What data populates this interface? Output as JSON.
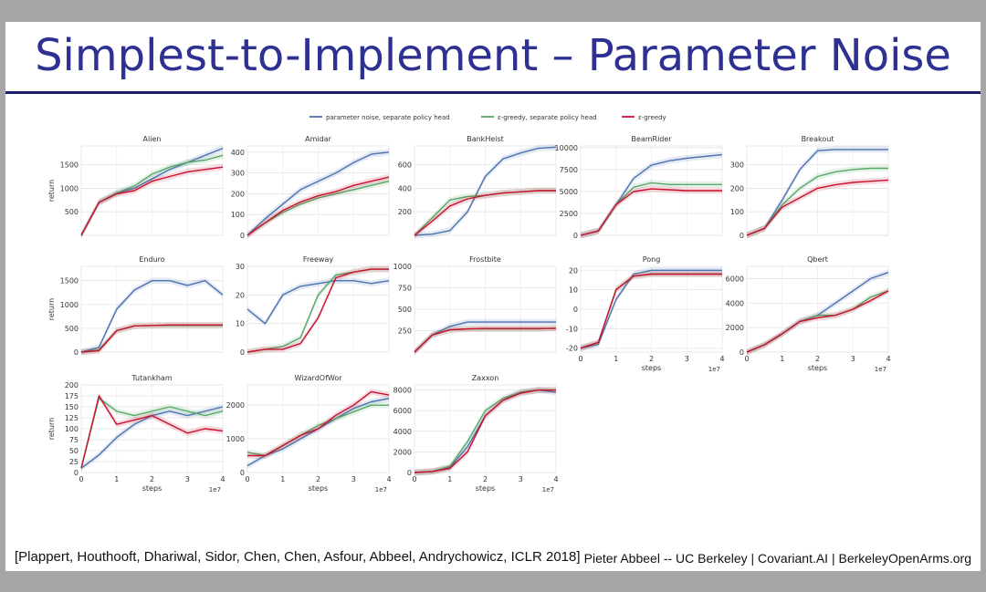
{
  "slide": {
    "title": "Simplest-to-Implement – Parameter Noise",
    "citation": "[Plappert, Houthooft,  Dhariwal, Sidor, Chen, Chen, Asfour, Abbeel, Andrychowicz, ICLR 2018]",
    "credit": "Pieter Abbeel -- UC Berkeley | Covariant.AI | BerkeleyOpenArms.org"
  },
  "colors": {
    "title": "#2e3192",
    "param_noise": "#4c72b0",
    "eps_greedy_sep": "#55a868",
    "eps_greedy": "#c8102e"
  },
  "legend": [
    "parameter noise, separate policy head",
    "ε-greedy, separate policy head",
    "ε-greedy"
  ],
  "chart_data": [
    {
      "type": "line",
      "title": "Alien",
      "ylabel": "return",
      "xlabel": "",
      "x": [
        0,
        0.5,
        1,
        1.5,
        2,
        2.5,
        3,
        3.5,
        4
      ],
      "ylim": [
        0,
        1900
      ],
      "yticks": [
        "500",
        "1000",
        "1500"
      ],
      "ytick_vals": [
        500,
        1000,
        1500
      ],
      "xticks": [],
      "series": [
        {
          "name": "parameter noise, separate policy head",
          "values": [
            0,
            700,
            900,
            1000,
            1200,
            1400,
            1550,
            1700,
            1850
          ]
        },
        {
          "name": "ε-greedy, separate policy head",
          "values": [
            0,
            700,
            900,
            1050,
            1300,
            1450,
            1550,
            1600,
            1700
          ]
        },
        {
          "name": "ε-greedy",
          "values": [
            0,
            700,
            880,
            950,
            1150,
            1250,
            1350,
            1400,
            1450
          ]
        }
      ]
    },
    {
      "type": "line",
      "title": "Amidar",
      "ylabel": "",
      "xlabel": "",
      "x": [
        0,
        0.5,
        1,
        1.5,
        2,
        2.5,
        3,
        3.5,
        4
      ],
      "ylim": [
        0,
        430
      ],
      "yticks": [
        "0",
        "100",
        "200",
        "300",
        "400"
      ],
      "ytick_vals": [
        0,
        100,
        200,
        300,
        400
      ],
      "xticks": [],
      "series": [
        {
          "name": "parameter noise, separate policy head",
          "values": [
            0,
            80,
            150,
            220,
            260,
            300,
            350,
            390,
            400
          ]
        },
        {
          "name": "ε-greedy, separate policy head",
          "values": [
            0,
            60,
            110,
            150,
            180,
            200,
            220,
            240,
            260
          ]
        },
        {
          "name": "ε-greedy",
          "values": [
            0,
            60,
            120,
            160,
            190,
            210,
            240,
            260,
            280
          ]
        }
      ]
    },
    {
      "type": "line",
      "title": "BankHeist",
      "ylabel": "",
      "xlabel": "",
      "x": [
        0,
        0.5,
        1,
        1.5,
        2,
        2.5,
        3,
        3.5,
        4
      ],
      "ylim": [
        0,
        760
      ],
      "yticks": [
        "200",
        "400",
        "600"
      ],
      "ytick_vals": [
        200,
        400,
        600
      ],
      "xticks": [],
      "series": [
        {
          "name": "parameter noise, separate policy head",
          "values": [
            0,
            10,
            40,
            200,
            500,
            650,
            700,
            740,
            750
          ]
        },
        {
          "name": "ε-greedy, separate policy head",
          "values": [
            0,
            150,
            300,
            330,
            340,
            360,
            370,
            380,
            380
          ]
        },
        {
          "name": "ε-greedy",
          "values": [
            0,
            120,
            250,
            310,
            340,
            360,
            370,
            380,
            380
          ]
        }
      ]
    },
    {
      "type": "line",
      "title": "BeamRider",
      "ylabel": "",
      "xlabel": "",
      "x": [
        0,
        0.5,
        1,
        1.5,
        2,
        2.5,
        3,
        3.5,
        4
      ],
      "ylim": [
        0,
        10200
      ],
      "yticks": [
        "0",
        "2500",
        "5000",
        "7500",
        "10000"
      ],
      "ytick_vals": [
        0,
        2500,
        5000,
        7500,
        10000
      ],
      "xticks": [],
      "series": [
        {
          "name": "parameter noise, separate policy head",
          "values": [
            0,
            500,
            3500,
            6500,
            8000,
            8500,
            8800,
            9000,
            9200
          ]
        },
        {
          "name": "ε-greedy, separate policy head",
          "values": [
            0,
            500,
            3500,
            5500,
            6000,
            5800,
            5800,
            5800,
            5800
          ]
        },
        {
          "name": "ε-greedy",
          "values": [
            0,
            500,
            3500,
            5000,
            5300,
            5200,
            5100,
            5100,
            5100
          ]
        }
      ]
    },
    {
      "type": "line",
      "title": "Breakout",
      "ylabel": "",
      "xlabel": "",
      "x": [
        0,
        0.5,
        1,
        1.5,
        2,
        2.5,
        3,
        3.5,
        4
      ],
      "ylim": [
        0,
        380
      ],
      "yticks": [
        "0",
        "100",
        "200",
        "300"
      ],
      "ytick_vals": [
        0,
        100,
        200,
        300
      ],
      "xticks": [],
      "series": [
        {
          "name": "parameter noise, separate policy head",
          "values": [
            0,
            30,
            150,
            280,
            360,
            365,
            365,
            365,
            365
          ]
        },
        {
          "name": "ε-greedy, separate policy head",
          "values": [
            0,
            30,
            130,
            200,
            250,
            270,
            280,
            285,
            285
          ]
        },
        {
          "name": "ε-greedy",
          "values": [
            0,
            30,
            120,
            160,
            200,
            215,
            225,
            230,
            235
          ]
        }
      ]
    },
    {
      "type": "line",
      "title": "Enduro",
      "ylabel": "return",
      "xlabel": "",
      "x": [
        0,
        0.5,
        1,
        1.5,
        2,
        2.5,
        3,
        3.5,
        4
      ],
      "ylim": [
        0,
        1800
      ],
      "yticks": [
        "0",
        "500",
        "1000",
        "1500"
      ],
      "ytick_vals": [
        0,
        500,
        1000,
        1500
      ],
      "xticks": [],
      "series": [
        {
          "name": "parameter noise, separate policy head",
          "values": [
            0,
            100,
            900,
            1300,
            1500,
            1500,
            1400,
            1500,
            1200
          ]
        },
        {
          "name": "ε-greedy, separate policy head",
          "values": [
            0,
            50,
            450,
            550,
            560,
            560,
            560,
            560,
            560
          ]
        },
        {
          "name": "ε-greedy",
          "values": [
            0,
            30,
            450,
            550,
            560,
            570,
            570,
            570,
            570
          ]
        }
      ]
    },
    {
      "type": "line",
      "title": "Freeway",
      "ylabel": "",
      "xlabel": "",
      "x": [
        0,
        0.5,
        1,
        1.5,
        2,
        2.5,
        3,
        3.5,
        4
      ],
      "ylim": [
        0,
        30
      ],
      "yticks": [
        "0",
        "10",
        "20",
        "30"
      ],
      "ytick_vals": [
        0,
        10,
        20,
        30
      ],
      "xticks": [],
      "series": [
        {
          "name": "parameter noise, separate policy head",
          "values": [
            15,
            10,
            20,
            23,
            24,
            25,
            25,
            24,
            25
          ]
        },
        {
          "name": "ε-greedy, separate policy head",
          "values": [
            0,
            1,
            2,
            5,
            20,
            27,
            28,
            29,
            29
          ]
        },
        {
          "name": "ε-greedy",
          "values": [
            0,
            1,
            1,
            3,
            12,
            26,
            28,
            29,
            29
          ]
        }
      ]
    },
    {
      "type": "line",
      "title": "Frostbite",
      "ylabel": "",
      "xlabel": "",
      "x": [
        0,
        0.5,
        1,
        1.5,
        2,
        2.5,
        3,
        3.5,
        4
      ],
      "ylim": [
        0,
        1000
      ],
      "yticks": [
        "250",
        "500",
        "750",
        "1000"
      ],
      "ytick_vals": [
        250,
        500,
        750,
        1000
      ],
      "xticks": [],
      "series": [
        {
          "name": "parameter noise, separate policy head",
          "values": [
            0,
            200,
            300,
            350,
            350,
            350,
            350,
            350,
            350
          ]
        },
        {
          "name": "ε-greedy, separate policy head",
          "values": [
            0,
            200,
            260,
            270,
            270,
            270,
            270,
            270,
            280
          ]
        },
        {
          "name": "ε-greedy",
          "values": [
            0,
            200,
            260,
            270,
            275,
            275,
            275,
            275,
            275
          ]
        }
      ]
    },
    {
      "type": "line",
      "title": "Pong",
      "ylabel": "",
      "xlabel": "steps",
      "x": [
        0,
        0.5,
        1,
        1.5,
        2,
        2.5,
        3,
        3.5,
        4
      ],
      "ylim": [
        -22,
        22
      ],
      "yticks": [
        "-20",
        "-10",
        "0",
        "10",
        "20"
      ],
      "ytick_vals": [
        -20,
        -10,
        0,
        10,
        20
      ],
      "xticks": [
        "0",
        "1",
        "2",
        "3",
        "4"
      ],
      "xtick_vals": [
        0,
        1,
        2,
        3,
        4
      ],
      "xexp": "1e7",
      "series": [
        {
          "name": "parameter noise, separate policy head",
          "values": [
            -20,
            -18,
            5,
            18,
            20,
            20,
            20,
            20,
            20
          ]
        },
        {
          "name": "ε-greedy, separate policy head",
          "values": [
            -20,
            -17,
            10,
            17,
            18,
            18,
            18,
            18,
            18
          ]
        },
        {
          "name": "ε-greedy",
          "values": [
            -20,
            -17,
            10,
            17,
            18,
            18,
            18,
            18,
            18
          ]
        }
      ]
    },
    {
      "type": "line",
      "title": "Qbert",
      "ylabel": "",
      "xlabel": "steps",
      "x": [
        0,
        0.5,
        1,
        1.5,
        2,
        2.5,
        3,
        3.5,
        4
      ],
      "ylim": [
        0,
        7000
      ],
      "yticks": [
        "0",
        "2000",
        "4000",
        "6000"
      ],
      "ytick_vals": [
        0,
        2000,
        4000,
        6000
      ],
      "xticks": [
        "0",
        "1",
        "2",
        "3",
        "4"
      ],
      "xtick_vals": [
        0,
        1,
        2,
        3,
        4
      ],
      "xexp": "1e7",
      "series": [
        {
          "name": "parameter noise, separate policy head",
          "values": [
            0,
            600,
            1500,
            2500,
            3000,
            4000,
            5000,
            6000,
            6500
          ]
        },
        {
          "name": "ε-greedy, separate policy head",
          "values": [
            0,
            600,
            1500,
            2500,
            3000,
            3000,
            3500,
            4500,
            5000
          ]
        },
        {
          "name": "ε-greedy",
          "values": [
            0,
            600,
            1500,
            2500,
            2800,
            3000,
            3500,
            4200,
            5000
          ]
        }
      ]
    },
    {
      "type": "line",
      "title": "Tutankham",
      "ylabel": "return",
      "xlabel": "steps",
      "x": [
        0,
        0.5,
        1,
        1.5,
        2,
        2.5,
        3,
        3.5,
        4
      ],
      "ylim": [
        0,
        200
      ],
      "yticks": [
        "0",
        "25",
        "50",
        "75",
        "100",
        "125",
        "150",
        "175",
        "200"
      ],
      "ytick_vals": [
        0,
        25,
        50,
        75,
        100,
        125,
        150,
        175,
        200
      ],
      "xticks": [
        "0",
        "1",
        "2",
        "3",
        "4"
      ],
      "xtick_vals": [
        0,
        1,
        2,
        3,
        4
      ],
      "xexp": "1e7",
      "series": [
        {
          "name": "parameter noise, separate policy head",
          "values": [
            10,
            40,
            80,
            110,
            130,
            140,
            130,
            140,
            150
          ]
        },
        {
          "name": "ε-greedy, separate policy head",
          "values": [
            10,
            170,
            140,
            130,
            140,
            150,
            140,
            130,
            140
          ]
        },
        {
          "name": "ε-greedy",
          "values": [
            10,
            175,
            110,
            120,
            130,
            110,
            90,
            100,
            95
          ]
        }
      ]
    },
    {
      "type": "line",
      "title": "WizardOfWor",
      "ylabel": "",
      "xlabel": "steps",
      "x": [
        0,
        0.5,
        1,
        1.5,
        2,
        2.5,
        3,
        3.5,
        4
      ],
      "ylim": [
        0,
        2600
      ],
      "yticks": [
        "0",
        "1000",
        "2000"
      ],
      "ytick_vals": [
        0,
        1000,
        2000
      ],
      "xticks": [
        "0",
        "1",
        "2",
        "3",
        "4"
      ],
      "xtick_vals": [
        0,
        1,
        2,
        3,
        4
      ],
      "xexp": "1e7",
      "series": [
        {
          "name": "parameter noise, separate policy head",
          "values": [
            200,
            500,
            700,
            1000,
            1300,
            1600,
            1900,
            2100,
            2200
          ]
        },
        {
          "name": "ε-greedy, separate policy head",
          "values": [
            600,
            500,
            800,
            1100,
            1400,
            1600,
            1800,
            2000,
            2000
          ]
        },
        {
          "name": "ε-greedy",
          "values": [
            500,
            500,
            800,
            1100,
            1300,
            1700,
            2000,
            2400,
            2300
          ]
        }
      ]
    },
    {
      "type": "line",
      "title": "Zaxxon",
      "ylabel": "",
      "xlabel": "steps",
      "x": [
        0,
        0.5,
        1,
        1.5,
        2,
        2.5,
        3,
        3.5,
        4
      ],
      "ylim": [
        0,
        8500
      ],
      "yticks": [
        "0",
        "2000",
        "4000",
        "6000",
        "8000"
      ],
      "ytick_vals": [
        0,
        2000,
        4000,
        6000,
        8000
      ],
      "xticks": [
        "0",
        "1",
        "2",
        "3",
        "4"
      ],
      "xtick_vals": [
        0,
        1,
        2,
        3,
        4
      ],
      "xexp": "1e7",
      "series": [
        {
          "name": "parameter noise, separate policy head",
          "values": [
            0,
            100,
            500,
            2500,
            5500,
            7000,
            7800,
            8000,
            7800
          ]
        },
        {
          "name": "ε-greedy, separate policy head",
          "values": [
            0,
            100,
            600,
            3000,
            6000,
            7200,
            7800,
            8000,
            8000
          ]
        },
        {
          "name": "ε-greedy",
          "values": [
            0,
            100,
            400,
            2000,
            5500,
            7000,
            7700,
            8000,
            8000
          ]
        }
      ]
    }
  ]
}
